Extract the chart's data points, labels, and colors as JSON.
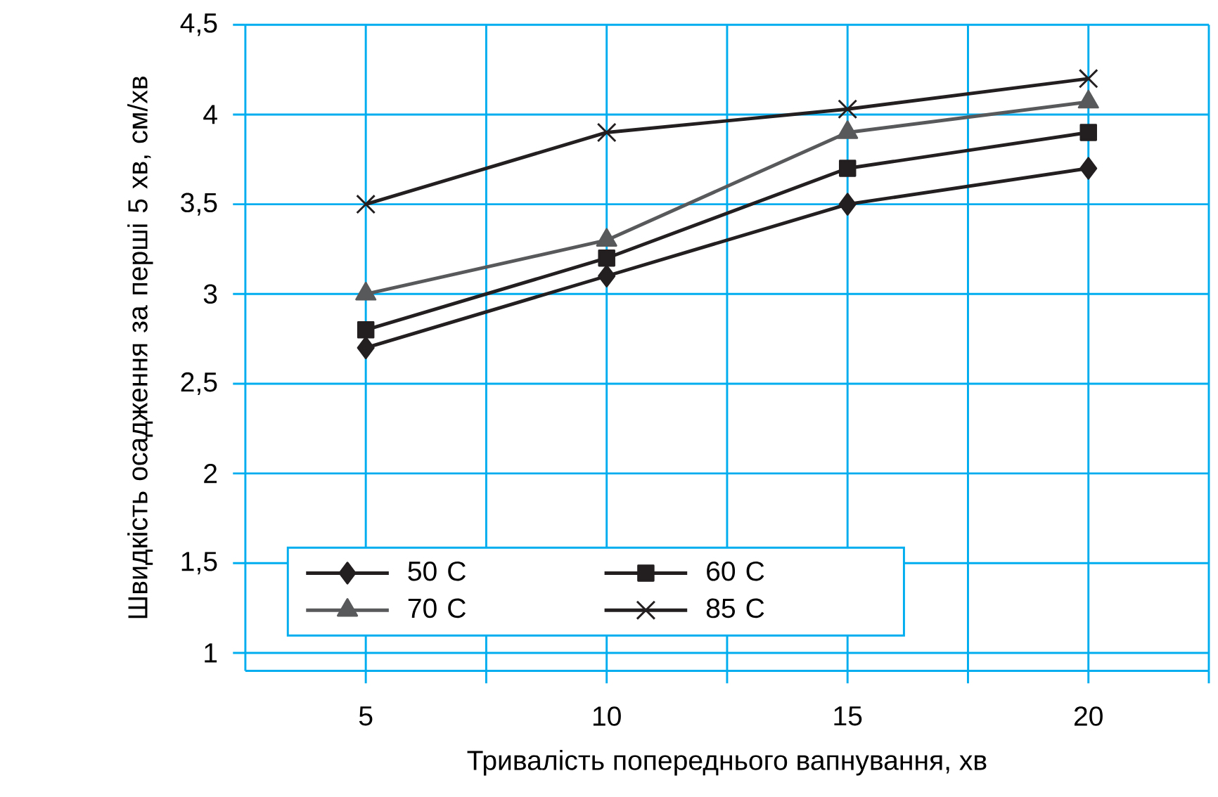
{
  "chart_data": {
    "type": "line",
    "xlabel": "Тривалість попереднього вапнування, хв",
    "ylabel": "Швидкість осадження за перші 5 хв, см/хв",
    "x": [
      5,
      10,
      15,
      20
    ],
    "series": [
      {
        "name": "50 C",
        "color": "#231f20",
        "marker": "diamond",
        "values": [
          2.7,
          3.1,
          3.5,
          3.7
        ]
      },
      {
        "name": "60 C",
        "color": "#231f20",
        "marker": "square",
        "values": [
          2.8,
          3.2,
          3.7,
          3.9
        ]
      },
      {
        "name": "70 C",
        "color": "#58595b",
        "marker": "triangle",
        "values": [
          3.0,
          3.3,
          3.9,
          4.07
        ]
      },
      {
        "name": "85 C",
        "color": "#231f20",
        "marker": "cross",
        "values": [
          3.5,
          3.9,
          4.03,
          4.2
        ]
      }
    ],
    "xlim": [
      2.5,
      22.5
    ],
    "xticks": [
      5,
      {
        "value": 7.5,
        "label": null
      },
      10,
      {
        "value": 12.5,
        "label": null
      },
      15,
      {
        "value": 17.5,
        "label": null
      },
      20,
      {
        "value": 22.5,
        "label": null
      }
    ],
    "ylim": [
      0.9,
      4.5
    ],
    "yticks": [
      1,
      {
        "value": 1.5,
        "label": "1,5"
      },
      2,
      {
        "value": 2.5,
        "label": "2,5"
      },
      3,
      {
        "value": 3.5,
        "label": "3,5"
      },
      4,
      {
        "value": 4.5,
        "label": "4,5"
      }
    ],
    "grid": true,
    "legend": "bottom left",
    "line_style": "solid"
  }
}
